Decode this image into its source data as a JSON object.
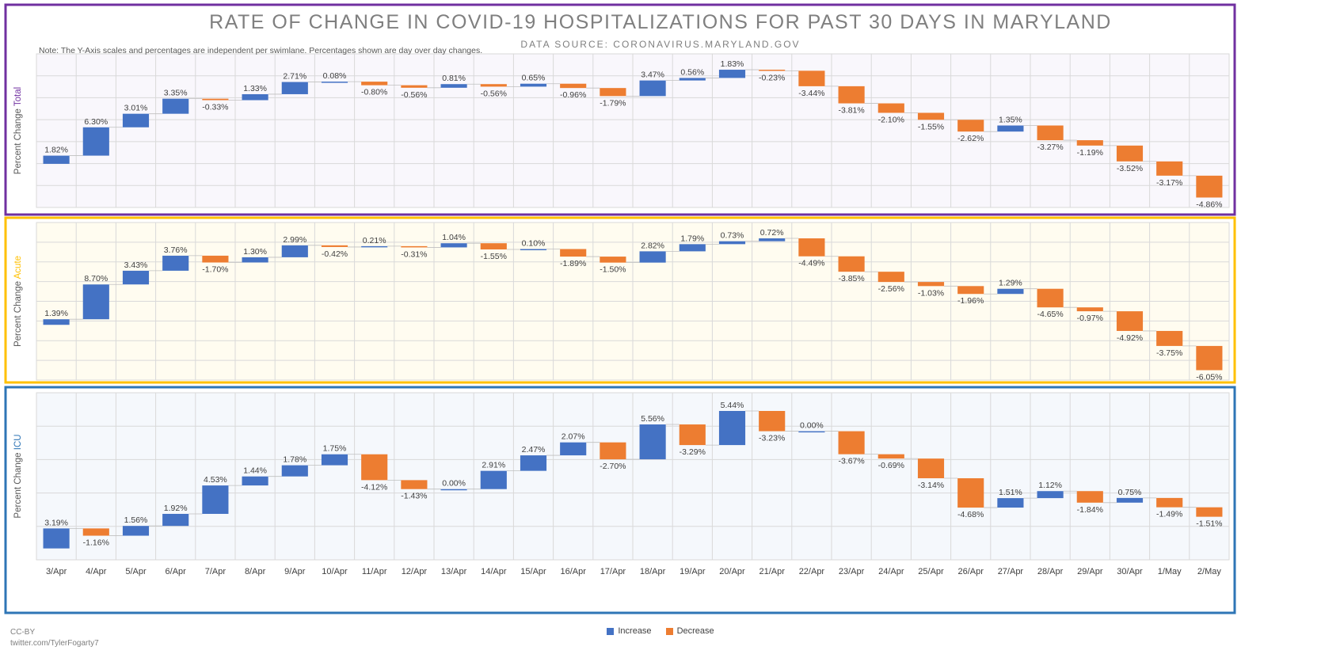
{
  "title": "RATE OF CHANGE IN COVID-19 HOSPITALIZATIONS FOR PAST 30 DAYS IN MARYLAND",
  "subtitle": "DATA SOURCE: CORONAVIRUS.MARYLAND.GOV",
  "note": "Note: The Y-Axis scales and percentages are independent per swimlane. Percentages shown are day over day changes.",
  "credit": [
    "CC-BY",
    "twitter.com/TylerFogarty7"
  ],
  "legend": [
    {
      "label": "Increase",
      "color": "#4472c4"
    },
    {
      "label": "Decrease",
      "color": "#ed7d31"
    }
  ],
  "chart_data": {
    "type": "bar",
    "subtype": "waterfall",
    "categories": [
      "3/Apr",
      "4/Apr",
      "5/Apr",
      "6/Apr",
      "7/Apr",
      "8/Apr",
      "9/Apr",
      "10/Apr",
      "11/Apr",
      "12/Apr",
      "13/Apr",
      "14/Apr",
      "15/Apr",
      "16/Apr",
      "17/Apr",
      "18/Apr",
      "19/Apr",
      "20/Apr",
      "21/Apr",
      "22/Apr",
      "23/Apr",
      "24/Apr",
      "25/Apr",
      "26/Apr",
      "27/Apr",
      "28/Apr",
      "29/Apr",
      "30/Apr",
      "1/May",
      "2/May"
    ],
    "ylabel_prefix": "Percent Change",
    "grid": true,
    "legend_position": "bottom",
    "series": [
      {
        "name": "Total",
        "label_color": "#7030a0",
        "border_color": "#7030a0",
        "background": "#f9f7fc",
        "values": [
          1.82,
          6.3,
          3.01,
          3.35,
          -0.33,
          1.33,
          2.71,
          0.08,
          -0.8,
          -0.56,
          0.81,
          -0.56,
          0.65,
          -0.96,
          -1.79,
          3.47,
          0.56,
          1.83,
          -0.23,
          -3.44,
          -3.81,
          -2.1,
          -1.55,
          -2.62,
          1.35,
          -3.27,
          -1.19,
          -3.52,
          -3.17,
          -4.86
        ],
        "data_labels": [
          "1.82%",
          "6.30%",
          "3.01%",
          "3.35%",
          "-0.33%",
          "1.33%",
          "2.71%",
          "0.08%",
          "-0.80%",
          "-0.56%",
          "0.81%",
          "-0.56%",
          "0.65%",
          "-0.96%",
          "-1.79%",
          "3.47%",
          "0.56%",
          "1.83%",
          "-0.23%",
          "-3.44%",
          "-3.81%",
          "-2.10%",
          "-1.55%",
          "-2.62%",
          "1.35%",
          "-3.27%",
          "-1.19%",
          "-3.52%",
          "-3.17%",
          "-4.86%"
        ]
      },
      {
        "name": "Acute",
        "label_color": "#ffc000",
        "border_color": "#ffc000",
        "background": "#fffcf0",
        "values": [
          1.39,
          8.7,
          3.43,
          3.76,
          -1.7,
          1.3,
          2.99,
          -0.42,
          0.21,
          -0.31,
          1.04,
          -1.55,
          0.1,
          -1.89,
          -1.5,
          2.82,
          1.79,
          0.73,
          0.72,
          -4.49,
          -3.85,
          -2.56,
          -1.03,
          -1.96,
          1.29,
          -4.65,
          -0.97,
          -4.92,
          -3.75,
          -6.05
        ],
        "data_labels": [
          "1.39%",
          "8.70%",
          "3.43%",
          "3.76%",
          "-1.70%",
          "1.30%",
          "2.99%",
          "-0.42%",
          "0.21%",
          "-0.31%",
          "1.04%",
          "-1.55%",
          "0.10%",
          "-1.89%",
          "-1.50%",
          "2.82%",
          "1.79%",
          "0.73%",
          "0.72%",
          "-4.49%",
          "-3.85%",
          "-2.56%",
          "-1.03%",
          "-1.96%",
          "1.29%",
          "-4.65%",
          "-0.97%",
          "-4.92%",
          "-3.75%",
          "-6.05%"
        ]
      },
      {
        "name": "ICU",
        "label_color": "#2e75b6",
        "border_color": "#2e75b6",
        "background": "#f5f8fc",
        "values": [
          3.19,
          -1.16,
          1.56,
          1.92,
          4.53,
          1.44,
          1.78,
          1.75,
          -4.12,
          -1.43,
          0.0,
          2.91,
          2.47,
          2.07,
          -2.7,
          5.56,
          -3.29,
          5.44,
          -3.23,
          0.0,
          -3.67,
          -0.69,
          -3.14,
          -4.68,
          1.51,
          1.12,
          -1.84,
          0.75,
          -1.49,
          -1.51
        ],
        "data_labels": [
          "3.19%",
          "-1.16%",
          "1.56%",
          "1.92%",
          "4.53%",
          "1.44%",
          "1.78%",
          "1.75%",
          "-4.12%",
          "-1.43%",
          "0.00%",
          "2.91%",
          "2.47%",
          "2.07%",
          "-2.70%",
          "5.56%",
          "-3.29%",
          "5.44%",
          "-3.23%",
          "0.00%",
          "-3.67%",
          "-0.69%",
          "-3.14%",
          "-4.68%",
          "1.51%",
          "1.12%",
          "-1.84%",
          "0.75%",
          "-1.49%",
          "-1.51%"
        ]
      }
    ]
  }
}
